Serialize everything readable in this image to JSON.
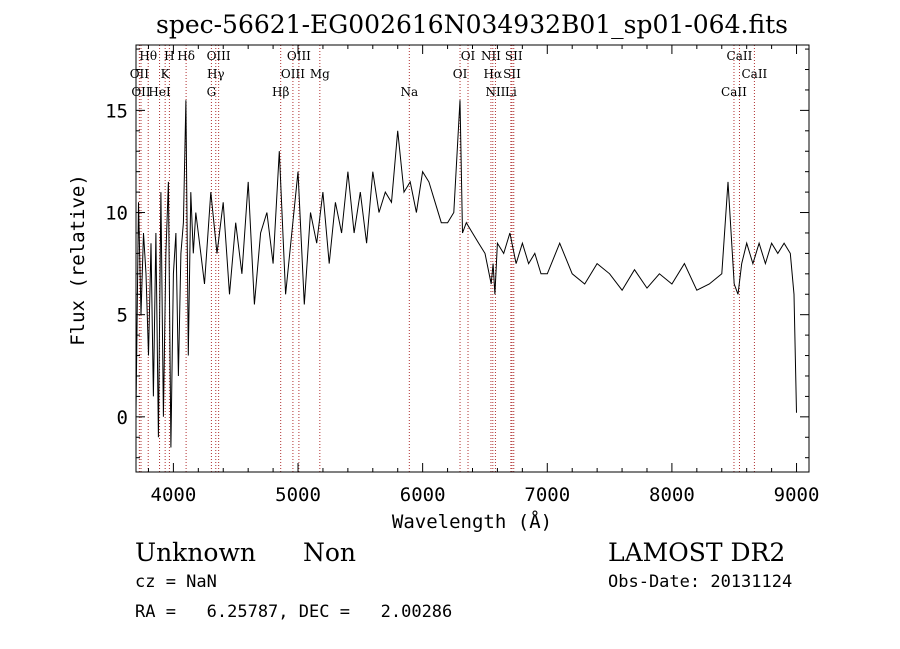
{
  "chart_data": {
    "type": "line",
    "title": "spec-56621-EG002616N034932B01_sp01-064.fits",
    "xlabel": "Wavelength (Å)",
    "ylabel": "Flux (relative)",
    "xlim": [
      3700,
      9100
    ],
    "ylim": [
      -2.7,
      18.2
    ],
    "xticks": [
      4000,
      5000,
      6000,
      7000,
      8000,
      9000
    ],
    "yticks": [
      0,
      5,
      10,
      15
    ],
    "grid": false,
    "series": [
      {
        "x": [
          3700,
          3720,
          3740,
          3760,
          3780,
          3800,
          3820,
          3840,
          3860,
          3880,
          3900,
          3920,
          3940,
          3960,
          3980,
          4000,
          4020,
          4040,
          4060,
          4080,
          4100,
          4120,
          4140,
          4160,
          4180,
          4200,
          4250,
          4300,
          4350,
          4400,
          4450,
          4500,
          4550,
          4600,
          4650,
          4700,
          4750,
          4800,
          4850,
          4900,
          4950,
          5000,
          5050,
          5100,
          5150,
          5200,
          5250,
          5300,
          5350,
          5400,
          5450,
          5500,
          5550,
          5600,
          5650,
          5700,
          5750,
          5800,
          5850,
          5900,
          5950,
          6000,
          6050,
          6100,
          6150,
          6200,
          6250,
          6300,
          6320,
          6350,
          6400,
          6450,
          6500,
          6550,
          6565,
          6580,
          6600,
          6650,
          6700,
          6750,
          6800,
          6850,
          6900,
          6950,
          7000,
          7100,
          7200,
          7300,
          7400,
          7500,
          7600,
          7700,
          7800,
          7900,
          8000,
          8100,
          8200,
          8300,
          8400,
          8450,
          8500,
          8530,
          8560,
          8600,
          8650,
          8700,
          8750,
          8800,
          8850,
          8900,
          8950,
          8980,
          9000
        ],
        "y": [
          0.2,
          10.5,
          5,
          9,
          7,
          3,
          8.5,
          1,
          9,
          -1,
          11,
          0,
          8,
          11.5,
          -1.5,
          7,
          9,
          2,
          8,
          9.5,
          15.5,
          3,
          11,
          8,
          10,
          9,
          6.5,
          11,
          8,
          10.5,
          6,
          9.5,
          7,
          11.5,
          5.5,
          9,
          10,
          7.5,
          13,
          6,
          9,
          12,
          5.5,
          10,
          8.5,
          11,
          7.5,
          10.5,
          9,
          12,
          9,
          11,
          8.5,
          12,
          10,
          11,
          10.5,
          14,
          11,
          11.5,
          10,
          12,
          11.5,
          10.5,
          9.5,
          9.5,
          10,
          15.5,
          9,
          9.5,
          9,
          8.5,
          8,
          6.5,
          7.5,
          6,
          8.5,
          8,
          9,
          7.5,
          8.5,
          7.5,
          8,
          7,
          7,
          8.5,
          7,
          6.5,
          7.5,
          7,
          6.2,
          7.2,
          6.3,
          7,
          6.5,
          7.5,
          6.2,
          6.5,
          7,
          11.5,
          6.5,
          6,
          7.5,
          8.5,
          7.5,
          8.5,
          7.5,
          8.5,
          8,
          8.5,
          8,
          6,
          0.2
        ]
      }
    ],
    "lines": [
      {
        "label": "Hθ",
        "x": 3798
      },
      {
        "label": "OII",
        "x": 3727
      },
      {
        "label": "OII",
        "x": 3740
      },
      {
        "label": "H",
        "x": 3968
      },
      {
        "label": "K",
        "x": 3934
      },
      {
        "label": "HeI",
        "x": 3889
      },
      {
        "label": "Hδ",
        "x": 4102
      },
      {
        "label": "Hγ",
        "x": 4340
      },
      {
        "label": "G",
        "x": 4305
      },
      {
        "label": "OIII",
        "x": 4363
      },
      {
        "label": "OIII",
        "x": 4959
      },
      {
        "label": "Hβ",
        "x": 4861
      },
      {
        "label": "OIII",
        "x": 5007
      },
      {
        "label": "Mg",
        "x": 5175
      },
      {
        "label": "Na",
        "x": 5893
      },
      {
        "label": "OI",
        "x": 6364
      },
      {
        "label": "OI",
        "x": 6300
      },
      {
        "label": "NII",
        "x": 6584
      },
      {
        "label": "NII",
        "x": 6548
      },
      {
        "label": "Hα",
        "x": 6563
      },
      {
        "label": "Li",
        "x": 6708
      },
      {
        "label": "SII",
        "x": 6731
      },
      {
        "label": "SII",
        "x": 6717
      },
      {
        "label": "CaII",
        "x": 8498
      },
      {
        "label": "CaII",
        "x": 8542
      },
      {
        "label": "CaII",
        "x": 8662
      }
    ]
  },
  "info": {
    "object_class": "Unknown",
    "object_subclass": "Non",
    "survey": "LAMOST DR2",
    "cz": "cz = NaN",
    "obs_date": "Obs-Date: 20131124",
    "radec": "RA =   6.25787, DEC =   2.00286"
  }
}
